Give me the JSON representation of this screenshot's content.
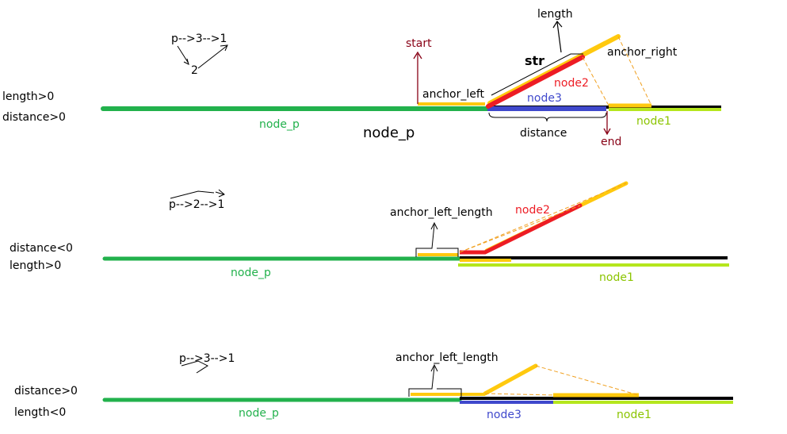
{
  "colors": {
    "green": "#22b14c",
    "black": "#000000",
    "yellow": "#ffc90e",
    "red": "#ed1c24",
    "blue": "#3f48cc",
    "lime": "#b5e61d",
    "dark_red": "#880015",
    "dash_orange": "#f0a020",
    "lime_text": "#8bc400"
  },
  "panel1": {
    "cond1": "length>0",
    "cond2": "distance>0",
    "order": "p-->3-->1",
    "order_mid": "2",
    "start": "start",
    "length": "length",
    "str": "str",
    "anchor_right": "anchor_right",
    "anchor_left": "anchor_left",
    "node2": "node2",
    "node3": "node3",
    "node1": "node1",
    "node_p": "node_p",
    "node_p_big": "node_p",
    "distance": "distance",
    "end": "end"
  },
  "panel2": {
    "cond1": "distance<0",
    "cond2": "length>0",
    "order": "p-->2-->1",
    "anchor_left_length": "anchor_left_length",
    "node2": "node2",
    "node_p": "node_p",
    "node1": "node1"
  },
  "panel3": {
    "cond1": "distance>0",
    "cond2": "length<0",
    "order": "p-->3-->1",
    "anchor_left_length": "anchor_left_length",
    "node_p": "node_p",
    "node3": "node3",
    "node1": "node1"
  }
}
